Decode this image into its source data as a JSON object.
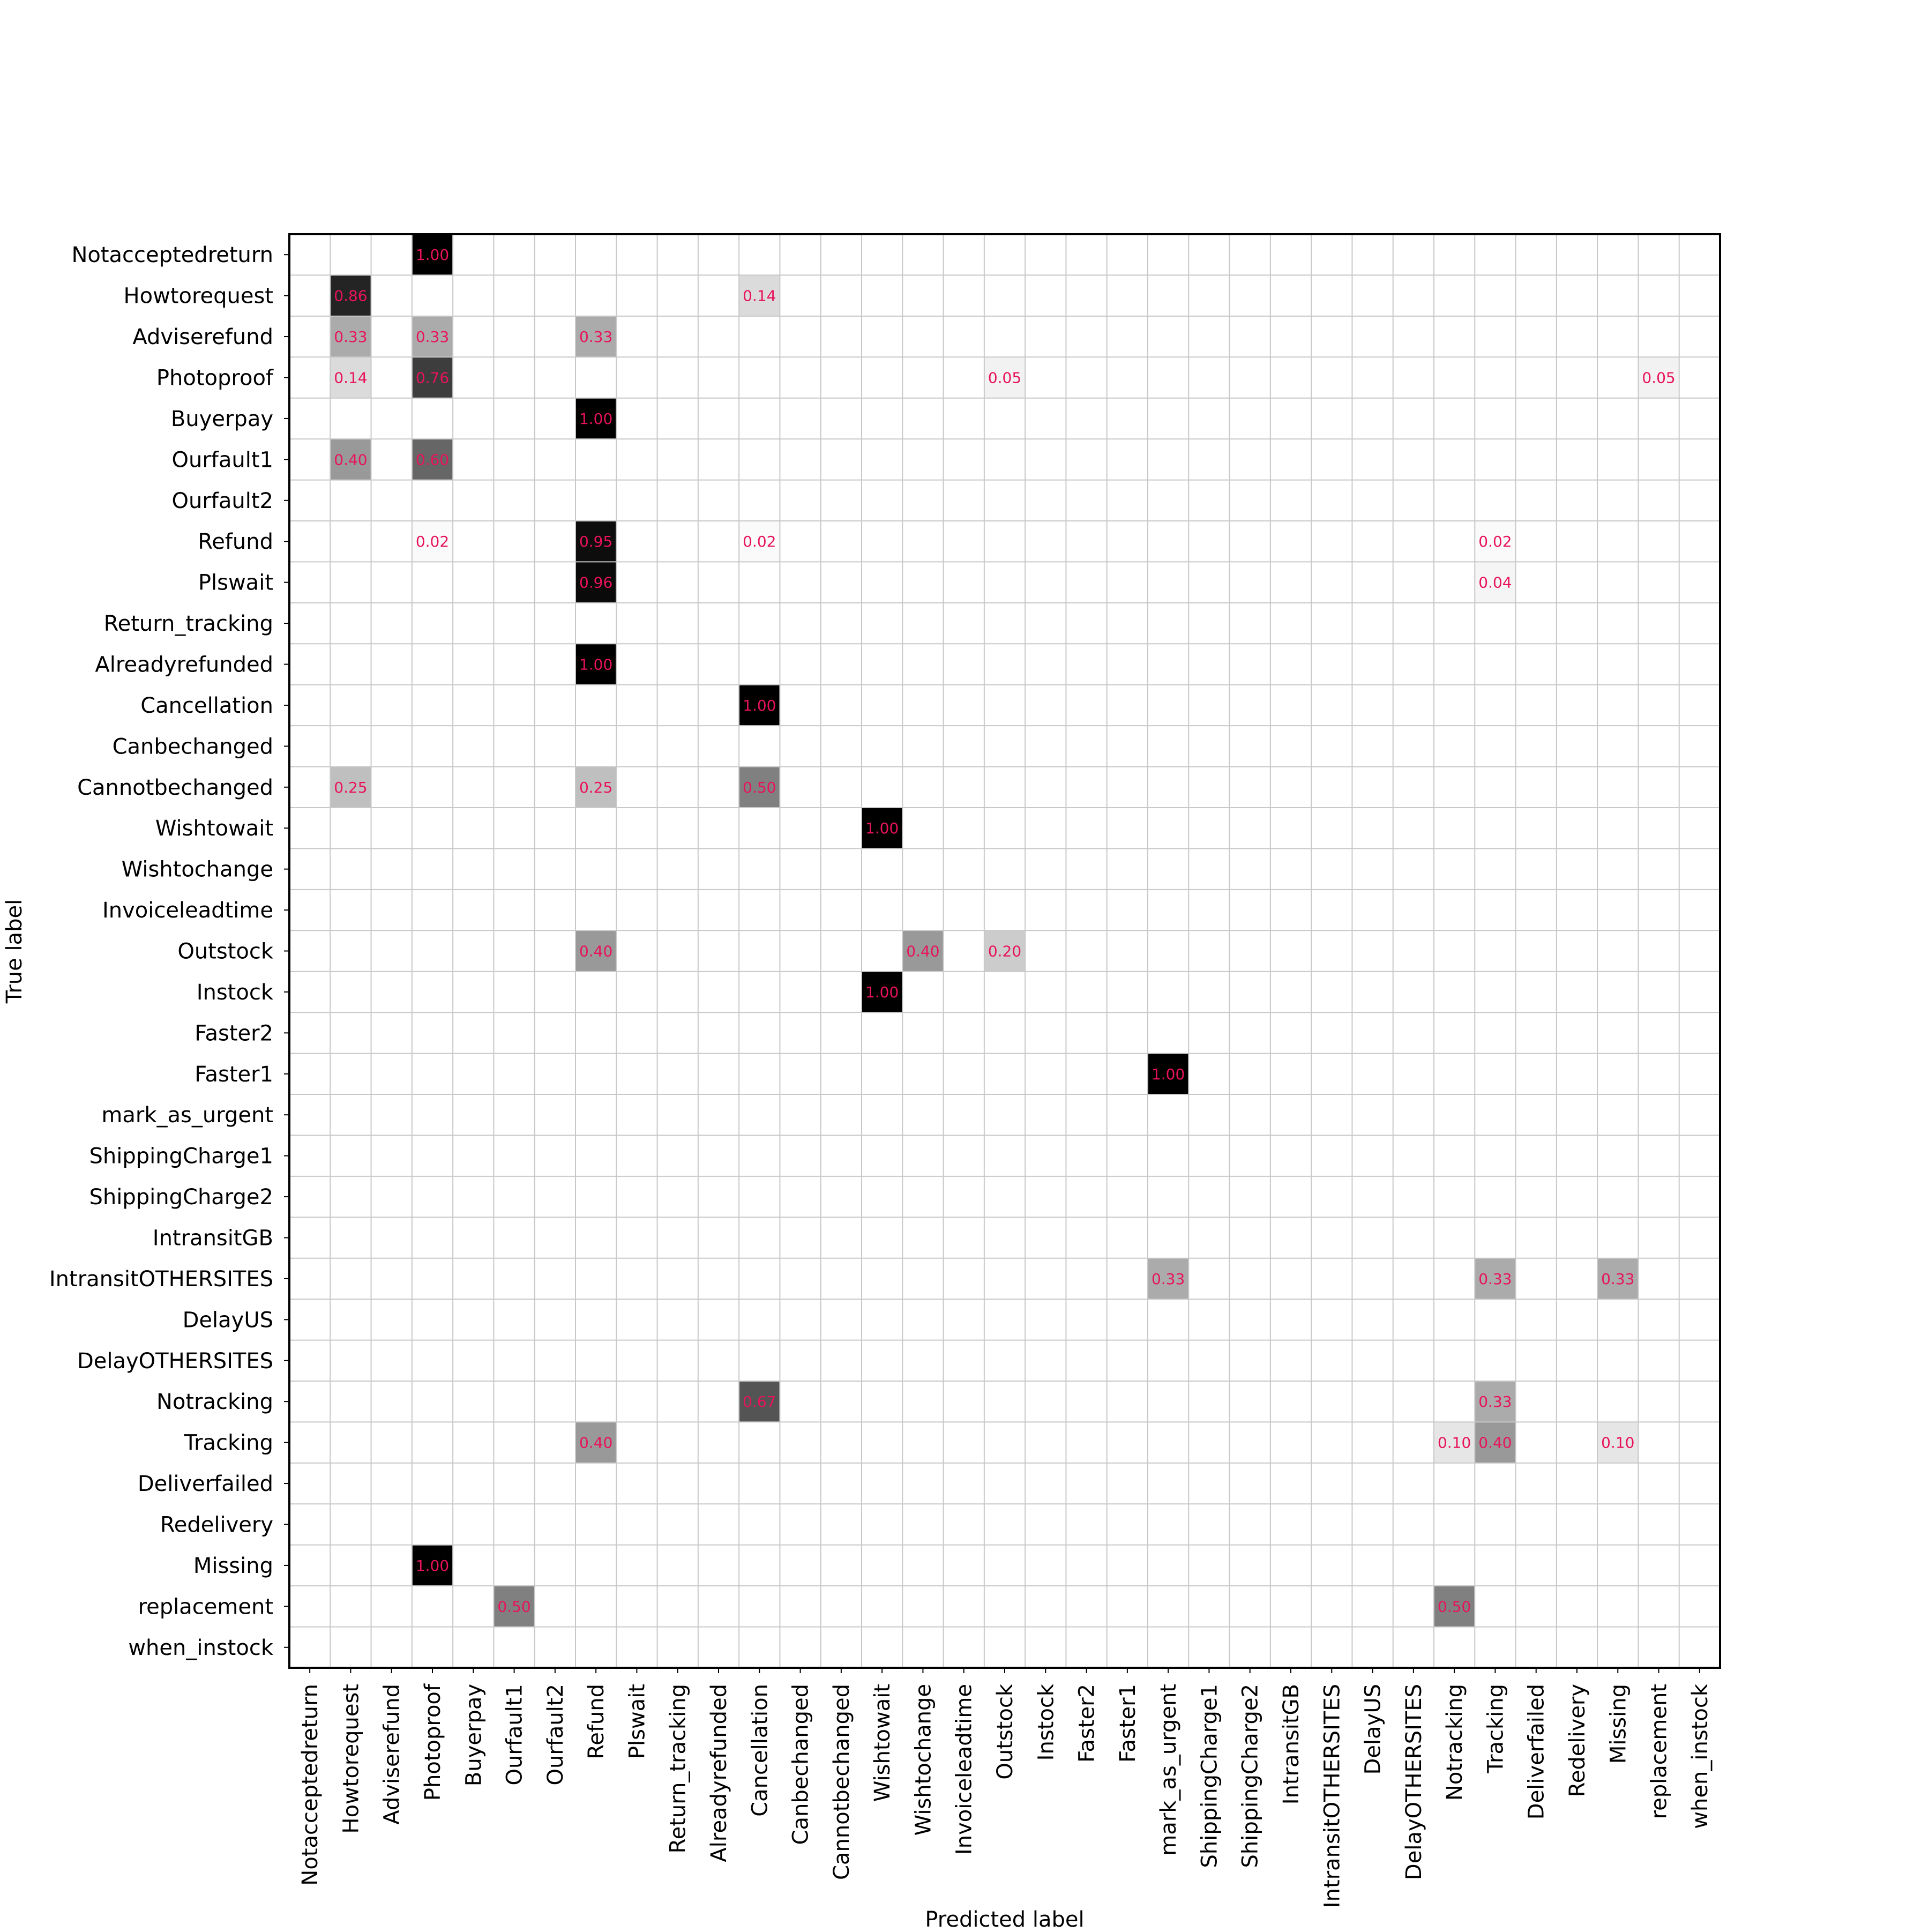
{
  "chart_data": {
    "type": "heatmap",
    "xlabel": "Predicted label",
    "ylabel": "True label",
    "grid": true,
    "colormap": "greys",
    "colors": {
      "cell_text": "#e8135a",
      "grid": "#c8c8c8",
      "axis": "#000000",
      "max": "#000000",
      "min": "#ffffff"
    },
    "labels": [
      "Notacceptedreturn",
      "Howtorequest",
      "Adviserefund",
      "Photoproof",
      "Buyerpay",
      "Ourfault1",
      "Ourfault2",
      "Refund",
      "Plswait",
      "Return_tracking",
      "Alreadyrefunded",
      "Cancellation",
      "Canbechanged",
      "Cannotbechanged",
      "Wishtowait",
      "Wishtochange",
      "Invoiceleadtime",
      "Outstock",
      "Instock",
      "Faster2",
      "Faster1",
      "mark_as_urgent",
      "ShippingCharge1",
      "ShippingCharge2",
      "IntransitGB",
      "IntransitOTHERSITES",
      "DelayUS",
      "DelayOTHERSITES",
      "Notracking",
      "Tracking",
      "Deliverfailed",
      "Redelivery",
      "Missing",
      "replacement",
      "when_instock"
    ],
    "cells": [
      {
        "row": 0,
        "col": 3,
        "value": 1.0
      },
      {
        "row": 1,
        "col": 1,
        "value": 0.86
      },
      {
        "row": 1,
        "col": 11,
        "value": 0.14
      },
      {
        "row": 2,
        "col": 1,
        "value": 0.33
      },
      {
        "row": 2,
        "col": 3,
        "value": 0.33
      },
      {
        "row": 2,
        "col": 7,
        "value": 0.33
      },
      {
        "row": 3,
        "col": 1,
        "value": 0.14
      },
      {
        "row": 3,
        "col": 3,
        "value": 0.76
      },
      {
        "row": 3,
        "col": 17,
        "value": 0.05
      },
      {
        "row": 3,
        "col": 33,
        "value": 0.05
      },
      {
        "row": 4,
        "col": 7,
        "value": 1.0
      },
      {
        "row": 5,
        "col": 1,
        "value": 0.4
      },
      {
        "row": 5,
        "col": 3,
        "value": 0.6
      },
      {
        "row": 7,
        "col": 3,
        "value": 0.02
      },
      {
        "row": 7,
        "col": 7,
        "value": 0.95
      },
      {
        "row": 7,
        "col": 11,
        "value": 0.02
      },
      {
        "row": 7,
        "col": 29,
        "value": 0.02
      },
      {
        "row": 8,
        "col": 7,
        "value": 0.96
      },
      {
        "row": 8,
        "col": 29,
        "value": 0.04
      },
      {
        "row": 10,
        "col": 7,
        "value": 1.0
      },
      {
        "row": 11,
        "col": 11,
        "value": 1.0
      },
      {
        "row": 13,
        "col": 1,
        "value": 0.25
      },
      {
        "row": 13,
        "col": 7,
        "value": 0.25
      },
      {
        "row": 13,
        "col": 11,
        "value": 0.5
      },
      {
        "row": 14,
        "col": 14,
        "value": 1.0
      },
      {
        "row": 17,
        "col": 7,
        "value": 0.4
      },
      {
        "row": 17,
        "col": 15,
        "value": 0.4
      },
      {
        "row": 17,
        "col": 17,
        "value": 0.2
      },
      {
        "row": 18,
        "col": 14,
        "value": 1.0
      },
      {
        "row": 20,
        "col": 21,
        "value": 1.0
      },
      {
        "row": 25,
        "col": 21,
        "value": 0.33
      },
      {
        "row": 25,
        "col": 29,
        "value": 0.33
      },
      {
        "row": 25,
        "col": 32,
        "value": 0.33
      },
      {
        "row": 28,
        "col": 11,
        "value": 0.67
      },
      {
        "row": 28,
        "col": 29,
        "value": 0.33
      },
      {
        "row": 29,
        "col": 7,
        "value": 0.4
      },
      {
        "row": 29,
        "col": 28,
        "value": 0.1
      },
      {
        "row": 29,
        "col": 29,
        "value": 0.4
      },
      {
        "row": 29,
        "col": 32,
        "value": 0.1
      },
      {
        "row": 32,
        "col": 3,
        "value": 1.0
      },
      {
        "row": 33,
        "col": 5,
        "value": 0.5
      },
      {
        "row": 33,
        "col": 28,
        "value": 0.5
      }
    ]
  }
}
